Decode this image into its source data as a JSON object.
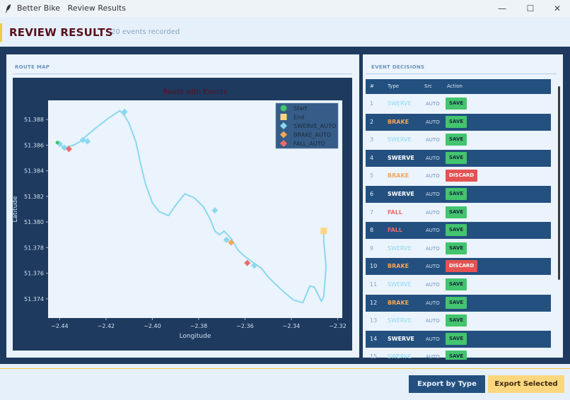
{
  "window": {
    "app_name": "Better Bike",
    "subtitle": "Review Results"
  },
  "header": {
    "title": "REVIEW RESULTS",
    "event_count": "20 events recorded"
  },
  "route_panel": {
    "label": "ROUTE MAP"
  },
  "events_panel": {
    "label": "EVENT DECISIONS"
  },
  "table": {
    "columns": [
      "#",
      "Type",
      "Src",
      "Action"
    ],
    "rows": [
      {
        "n": "1",
        "type": "SWERVE",
        "src": "AUTO",
        "action": "SAVE"
      },
      {
        "n": "2",
        "type": "BRAKE",
        "src": "AUTO",
        "action": "SAVE"
      },
      {
        "n": "3",
        "type": "SWERVE",
        "src": "AUTO",
        "action": "SAVE"
      },
      {
        "n": "4",
        "type": "SWERVE",
        "src": "AUTO",
        "action": "SAVE"
      },
      {
        "n": "5",
        "type": "BRAKE",
        "src": "AUTO",
        "action": "DISCARD"
      },
      {
        "n": "6",
        "type": "SWERVE",
        "src": "AUTO",
        "action": "SAVE"
      },
      {
        "n": "7",
        "type": "FALL",
        "src": "AUTO",
        "action": "SAVE"
      },
      {
        "n": "8",
        "type": "FALL",
        "src": "AUTO",
        "action": "SAVE"
      },
      {
        "n": "9",
        "type": "SWERVE",
        "src": "AUTO",
        "action": "SAVE"
      },
      {
        "n": "10",
        "type": "BRAKE",
        "src": "AUTO",
        "action": "DISCARD"
      },
      {
        "n": "11",
        "type": "SWERVE",
        "src": "AUTO",
        "action": "SAVE"
      },
      {
        "n": "12",
        "type": "BRAKE",
        "src": "AUTO",
        "action": "SAVE"
      },
      {
        "n": "13",
        "type": "SWERVE",
        "src": "AUTO",
        "action": "SAVE"
      },
      {
        "n": "14",
        "type": "SWERVE",
        "src": "AUTO",
        "action": "SAVE"
      },
      {
        "n": "15",
        "type": "SWERVE",
        "src": "AUTO",
        "action": "SAVE"
      }
    ]
  },
  "footer": {
    "export_type_label": "Export by Type",
    "export_selected_label": "Export Selected"
  },
  "colors": {
    "swerve": "#8ad8f0",
    "brake": "#f0a85a",
    "fall": "#f06b6b",
    "start": "#43c46e",
    "end": "#fcd77f",
    "route": "#8ad8f0"
  },
  "chart_data": {
    "type": "line",
    "title": "Route with Events",
    "xlabel": "Longitude",
    "ylabel": "Latitude",
    "xlim": [
      -2.445,
      -2.318
    ],
    "ylim": [
      51.3725,
      51.3895
    ],
    "xticks": [
      "−2.44",
      "−2.42",
      "−2.40",
      "−2.38",
      "−2.36",
      "−2.34",
      "−2.32"
    ],
    "yticks": [
      "51.374",
      "51.376",
      "51.378",
      "51.380",
      "51.382",
      "51.384",
      "51.386",
      "51.388"
    ],
    "legend": [
      "Start",
      "End",
      "SWERVE_AUTO",
      "BRAKE_AUTO",
      "FALL_AUTO"
    ],
    "legend_position": "top-right",
    "route": [
      [
        -2.441,
        51.3862
      ],
      [
        -2.438,
        51.3858
      ],
      [
        -2.434,
        51.386
      ],
      [
        -2.431,
        51.3863
      ],
      [
        -2.428,
        51.3868
      ],
      [
        -2.424,
        51.3874
      ],
      [
        -2.419,
        51.3881
      ],
      [
        -2.414,
        51.3887
      ],
      [
        -2.412,
        51.3883
      ],
      [
        -2.41,
        51.3877
      ],
      [
        -2.407,
        51.3862
      ],
      [
        -2.405,
        51.3845
      ],
      [
        -2.403,
        51.383
      ],
      [
        -2.4,
        51.3815
      ],
      [
        -2.397,
        51.3808
      ],
      [
        -2.393,
        51.3805
      ],
      [
        -2.39,
        51.3813
      ],
      [
        -2.386,
        51.3822
      ],
      [
        -2.382,
        51.3819
      ],
      [
        -2.378,
        51.3812
      ],
      [
        -2.375,
        51.3802
      ],
      [
        -2.373,
        51.3793
      ],
      [
        -2.371,
        51.379
      ],
      [
        -2.369,
        51.3793
      ],
      [
        -2.366,
        51.3787
      ],
      [
        -2.363,
        51.3778
      ],
      [
        -2.36,
        51.3773
      ],
      [
        -2.357,
        51.3769
      ],
      [
        -2.353,
        51.3764
      ],
      [
        -2.35,
        51.3757
      ],
      [
        -2.346,
        51.375
      ],
      [
        -2.343,
        51.3745
      ],
      [
        -2.339,
        51.3739
      ],
      [
        -2.335,
        51.3737
      ],
      [
        -2.332,
        51.375
      ],
      [
        -2.33,
        51.3749
      ],
      [
        -2.327,
        51.3738
      ],
      [
        -2.326,
        51.3742
      ],
      [
        -2.325,
        51.3765
      ],
      [
        -2.326,
        51.3785
      ],
      [
        -2.326,
        51.3792
      ]
    ],
    "start": [
      -2.441,
      51.3862
    ],
    "end": [
      -2.326,
      51.3793
    ],
    "events": [
      {
        "type": "SWERVE_AUTO",
        "x": -2.44,
        "y": 51.3861
      },
      {
        "type": "SWERVE_AUTO",
        "x": -2.438,
        "y": 51.3858
      },
      {
        "type": "FALL_AUTO",
        "x": -2.436,
        "y": 51.3857
      },
      {
        "type": "SWERVE_AUTO",
        "x": -2.43,
        "y": 51.3864
      },
      {
        "type": "SWERVE_AUTO",
        "x": -2.428,
        "y": 51.3863
      },
      {
        "type": "SWERVE_AUTO",
        "x": -2.412,
        "y": 51.3886
      },
      {
        "type": "SWERVE_AUTO",
        "x": -2.373,
        "y": 51.3809
      },
      {
        "type": "SWERVE_AUTO",
        "x": -2.368,
        "y": 51.3786
      },
      {
        "type": "BRAKE_AUTO",
        "x": -2.366,
        "y": 51.3784
      },
      {
        "type": "FALL_AUTO",
        "x": -2.359,
        "y": 51.3768
      },
      {
        "type": "SWERVE_AUTO",
        "x": -2.356,
        "y": 51.3766
      }
    ]
  }
}
